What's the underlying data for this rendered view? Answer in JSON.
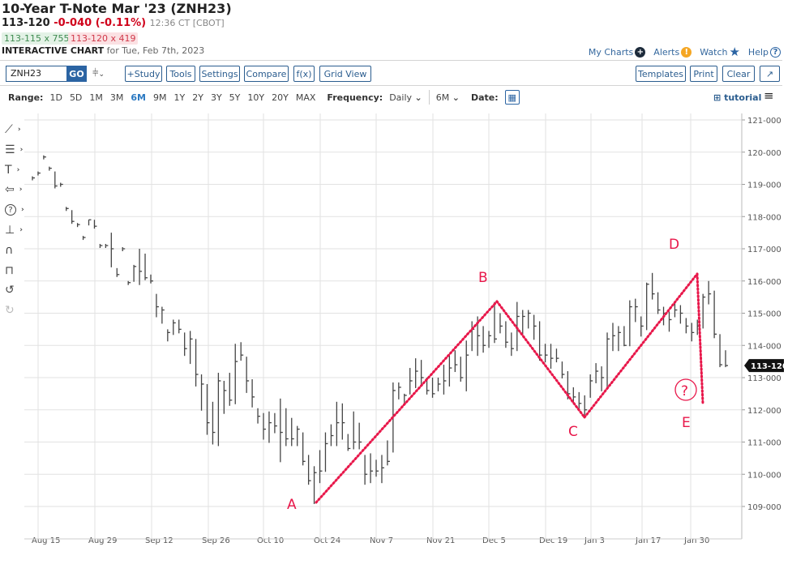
{
  "header": {
    "title": "10-Year T-Note Mar '23 (ZNH23)",
    "last": "113-120",
    "change": "-0-040 (-0.11%)",
    "time": "12:36 CT [CBOT]",
    "bid": "113-115 x 755",
    "ask": "113-120 x 419",
    "chart_label": "INTERACTIVE CHART",
    "chart_date": "for Tue, Feb 7th, 2023"
  },
  "top_links": {
    "my_charts": "My Charts",
    "alerts": "Alerts",
    "watch": "Watch",
    "help": "Help"
  },
  "toolbar": {
    "symbol": "ZNH23",
    "go": "GO",
    "study": "+Study",
    "tools": "Tools",
    "settings": "Settings",
    "compare": "Compare",
    "fx": "f(x)",
    "grid_view": "Grid View",
    "templates": "Templates",
    "print": "Print",
    "clear": "Clear"
  },
  "range": {
    "label": "Range:",
    "options": [
      "1D",
      "5D",
      "1M",
      "3M",
      "6M",
      "9M",
      "1Y",
      "2Y",
      "3Y",
      "5Y",
      "10Y",
      "20Y",
      "MAX"
    ],
    "selected": "6M",
    "frequency_label": "Frequency:",
    "frequency": "Daily",
    "period": "6M",
    "date_label": "Date:",
    "tutorial": "tutorial"
  },
  "drawing_tools": [
    "line-tool-icon",
    "fibonacci-tool-icon",
    "text-tool-icon",
    "arrow-tool-icon",
    "question-tool-icon",
    "measure-tool-icon",
    "magnet-icon",
    "unlock-icon",
    "undo-icon",
    "redo-icon"
  ],
  "colors": {
    "accent": "#2b5d8f",
    "negative": "#d0021b",
    "annotation": "#e8174a",
    "bars": "#444444"
  },
  "chart_data": {
    "type": "ohlc-bar",
    "symbol": "ZNH23",
    "x_tick_labels": [
      "Aug 15",
      "Aug 29",
      "Sep 12",
      "Sep 26",
      "Oct 10",
      "Oct 24",
      "Nov 7",
      "Nov 21",
      "Dec 5",
      "Dec 19",
      "Jan 3",
      "Jan 17",
      "Jan 30"
    ],
    "y_tick_labels": [
      "121-000",
      "120-000",
      "119-000",
      "118-000",
      "117-000",
      "116-000",
      "115-000",
      "114-000",
      "113-000",
      "112-000",
      "111-000",
      "110-000",
      "109-000"
    ],
    "ylim": [
      108.6,
      121.2
    ],
    "grid": true,
    "last_price_label": "113-120",
    "last_price": 113.375,
    "bars_high_low_close": [
      [
        119.25,
        119.15,
        119.2
      ],
      [
        119.4,
        119.3,
        119.35
      ],
      [
        119.9,
        119.8,
        119.85
      ],
      [
        119.55,
        119.45,
        119.5
      ],
      [
        119.4,
        118.9,
        118.95
      ],
      [
        119.05,
        118.95,
        119.0
      ],
      [
        118.3,
        118.2,
        118.25
      ],
      [
        118.2,
        117.8,
        117.85
      ],
      [
        117.8,
        117.7,
        117.75
      ],
      [
        117.4,
        117.3,
        117.35
      ],
      [
        117.9,
        117.75,
        117.9
      ],
      [
        117.9,
        117.65,
        117.7
      ],
      [
        117.15,
        117.05,
        117.1
      ],
      [
        117.15,
        117.05,
        117.1
      ],
      [
        117.5,
        116.45,
        117.0
      ],
      [
        116.4,
        116.15,
        116.2
      ],
      [
        117.05,
        116.95,
        117.0
      ],
      [
        116.0,
        115.9,
        115.95
      ],
      [
        116.5,
        116.0,
        116.45
      ],
      [
        117.0,
        115.9,
        116.3
      ],
      [
        116.85,
        116.05,
        116.1
      ],
      [
        116.2,
        115.95,
        116.0
      ],
      [
        115.6,
        114.9,
        115.2
      ],
      [
        115.2,
        114.7,
        115.1
      ],
      [
        114.5,
        114.15,
        114.4
      ],
      [
        114.8,
        114.35,
        114.7
      ],
      [
        114.8,
        114.4,
        114.5
      ],
      [
        114.4,
        113.7,
        113.9
      ],
      [
        114.45,
        113.45,
        114.2
      ],
      [
        114.2,
        112.75,
        113.1
      ],
      [
        113.1,
        112.0,
        112.8
      ],
      [
        112.8,
        111.25,
        111.6
      ],
      [
        112.25,
        110.95,
        111.3
      ],
      [
        113.15,
        110.9,
        112.9
      ],
      [
        112.9,
        111.9,
        112.6
      ],
      [
        113.15,
        112.15,
        112.3
      ],
      [
        114.05,
        112.2,
        113.5
      ],
      [
        114.1,
        113.55,
        113.7
      ],
      [
        113.65,
        112.55,
        112.9
      ],
      [
        112.95,
        112.1,
        112.4
      ],
      [
        112.05,
        111.6,
        111.8
      ],
      [
        111.9,
        111.1,
        111.4
      ],
      [
        111.95,
        111.0,
        111.6
      ],
      [
        111.9,
        111.3,
        111.5
      ],
      [
        112.35,
        110.4,
        111.3
      ],
      [
        112.05,
        110.9,
        111.1
      ],
      [
        111.75,
        110.9,
        111.1
      ],
      [
        111.5,
        110.9,
        111.4
      ],
      [
        111.3,
        110.3,
        110.4
      ],
      [
        110.6,
        109.7,
        109.8
      ],
      [
        110.25,
        109.1,
        110.05
      ],
      [
        110.75,
        109.75,
        110.1
      ],
      [
        111.3,
        110.1,
        110.95
      ],
      [
        111.55,
        110.9,
        111.2
      ],
      [
        112.25,
        110.9,
        111.6
      ],
      [
        112.2,
        111.1,
        111.6
      ],
      [
        111.25,
        110.75,
        110.8
      ],
      [
        111.95,
        110.8,
        111.0
      ],
      [
        111.6,
        110.8,
        111.0
      ],
      [
        110.6,
        109.7,
        110.0
      ],
      [
        110.65,
        109.75,
        110.1
      ],
      [
        110.45,
        109.95,
        110.1
      ],
      [
        110.6,
        109.75,
        110.2
      ],
      [
        111.05,
        110.3,
        110.4
      ],
      [
        112.85,
        110.7,
        112.6
      ],
      [
        112.85,
        112.35,
        112.7
      ],
      [
        112.5,
        112.2,
        112.45
      ],
      [
        113.3,
        112.5,
        112.9
      ],
      [
        113.6,
        112.7,
        113.2
      ],
      [
        113.55,
        112.8,
        113.0
      ],
      [
        113.0,
        112.5,
        112.6
      ],
      [
        113.0,
        112.4,
        112.5
      ],
      [
        113.0,
        112.6,
        112.8
      ],
      [
        113.4,
        112.5,
        112.9
      ],
      [
        113.7,
        112.75,
        113.3
      ],
      [
        113.85,
        113.2,
        113.4
      ],
      [
        113.65,
        112.9,
        113.0
      ],
      [
        114.15,
        112.6,
        113.7
      ],
      [
        114.75,
        113.85,
        114.5
      ],
      [
        114.9,
        113.7,
        114.3
      ],
      [
        114.6,
        113.8,
        114.0
      ],
      [
        114.45,
        113.95,
        114.3
      ],
      [
        115.35,
        114.1,
        114.2
      ],
      [
        115.0,
        114.4,
        114.6
      ],
      [
        114.75,
        113.95,
        114.1
      ],
      [
        114.4,
        113.7,
        113.9
      ],
      [
        115.35,
        113.85,
        114.9
      ],
      [
        115.1,
        114.35,
        114.9
      ],
      [
        115.1,
        114.55,
        115.0
      ],
      [
        114.95,
        114.2,
        114.6
      ],
      [
        114.75,
        113.55,
        113.7
      ],
      [
        114.05,
        113.5,
        113.7
      ],
      [
        114.05,
        113.3,
        113.6
      ],
      [
        113.9,
        113.5,
        113.6
      ],
      [
        113.5,
        113.0,
        113.1
      ],
      [
        113.2,
        112.35,
        112.5
      ],
      [
        112.7,
        112.2,
        112.4
      ],
      [
        112.55,
        112.0,
        112.2
      ],
      [
        112.45,
        111.85,
        112.0
      ],
      [
        113.1,
        112.4,
        112.9
      ],
      [
        113.45,
        112.85,
        113.2
      ],
      [
        113.35,
        112.6,
        113.0
      ],
      [
        114.4,
        112.65,
        114.2
      ],
      [
        114.7,
        113.85,
        114.3
      ],
      [
        114.6,
        113.85,
        114.4
      ],
      [
        114.6,
        114.0,
        114.0
      ],
      [
        115.4,
        114.0,
        115.2
      ],
      [
        115.45,
        114.75,
        115.2
      ],
      [
        114.9,
        114.3,
        114.6
      ],
      [
        115.95,
        114.5,
        115.9
      ],
      [
        116.25,
        115.45,
        115.6
      ],
      [
        115.65,
        115.0,
        115.1
      ],
      [
        115.2,
        114.65,
        115.0
      ],
      [
        115.05,
        114.45,
        114.8
      ],
      [
        115.3,
        114.9,
        115.1
      ],
      [
        115.25,
        114.7,
        115.0
      ],
      [
        114.85,
        114.4,
        114.6
      ],
      [
        114.7,
        114.15,
        114.4
      ],
      [
        114.8,
        114.35,
        114.6
      ],
      [
        115.6,
        114.55,
        115.5
      ],
      [
        116.0,
        115.3,
        115.6
      ],
      [
        115.7,
        114.25,
        114.35
      ],
      [
        114.35,
        113.35,
        113.4
      ],
      [
        113.85,
        113.35,
        113.375
      ]
    ],
    "annotations": {
      "labels": [
        "A",
        "B",
        "C",
        "D",
        "E"
      ],
      "question_mark": "?"
    }
  }
}
